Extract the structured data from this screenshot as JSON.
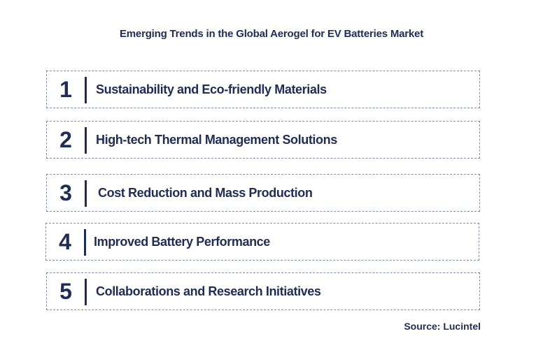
{
  "title": "Emerging Trends in the Global Aerogel for EV Batteries Market",
  "trends": [
    {
      "number": "1",
      "label": "Sustainability and Eco-friendly Materials"
    },
    {
      "number": "2",
      "label": "High-tech Thermal Management Solutions"
    },
    {
      "number": "3",
      "label": "Cost Reduction and Mass Production"
    },
    {
      "number": "4",
      "label": "Improved Battery Performance"
    },
    {
      "number": "5",
      "label": "Collaborations and Research Initiatives"
    }
  ],
  "source": "Source: Lucintel",
  "colors": {
    "text": "#1f2d54",
    "border": "#7f8fa6"
  }
}
